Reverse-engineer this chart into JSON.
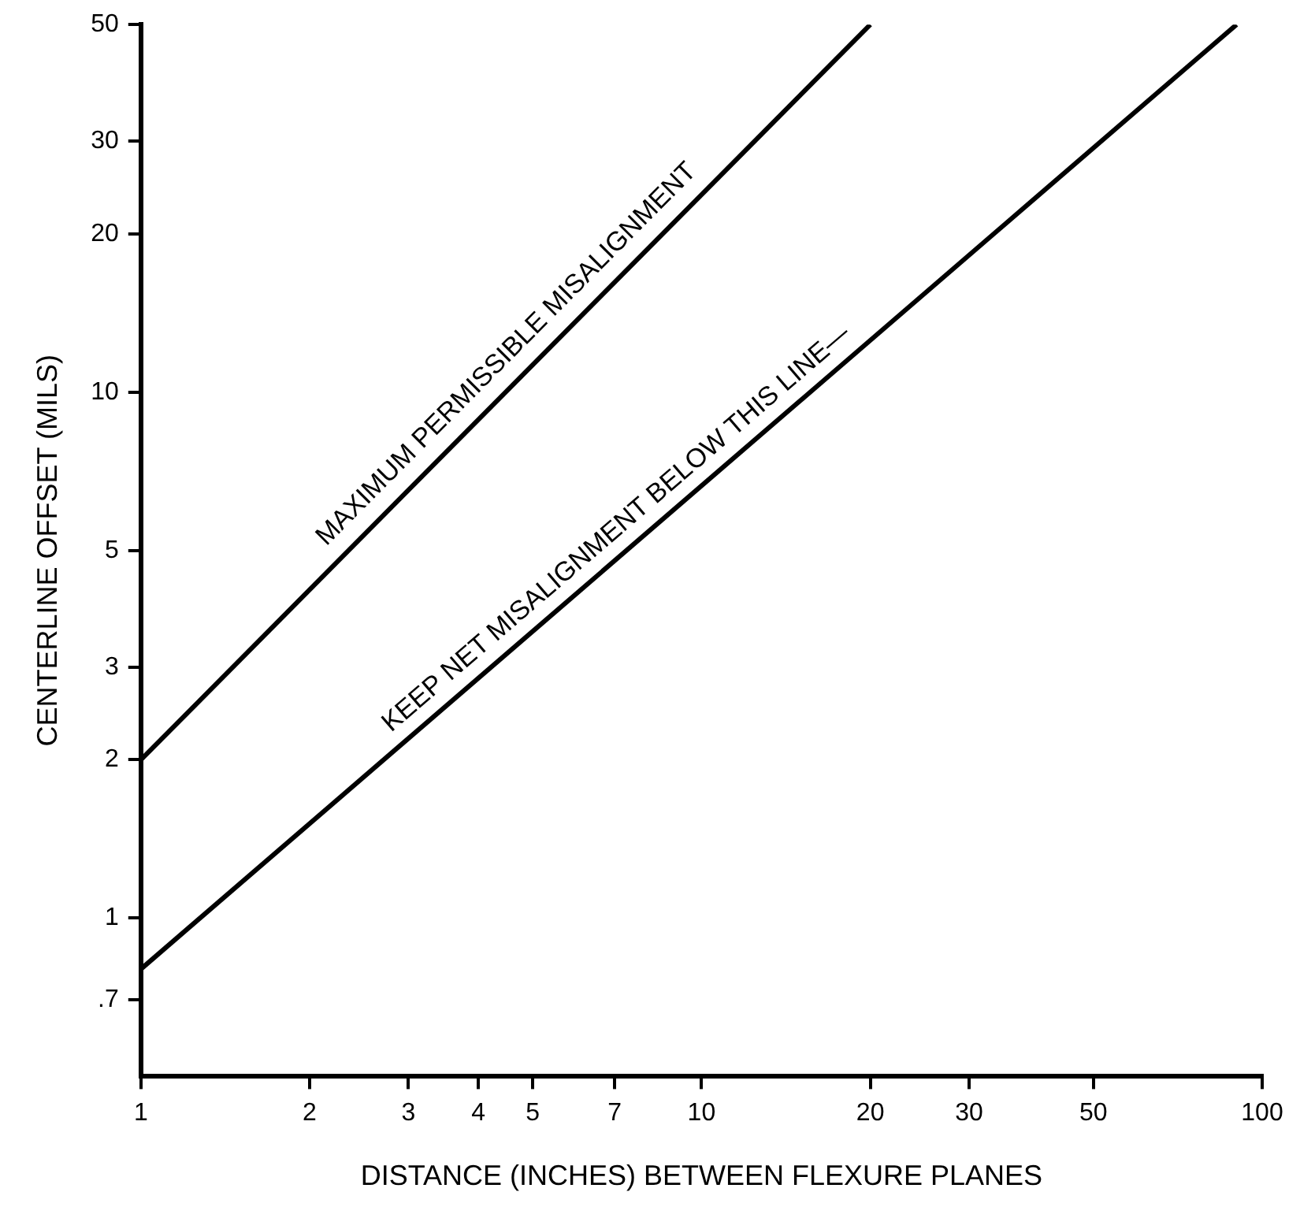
{
  "chart_data": {
    "type": "line",
    "xlabel": "DISTANCE (INCHES) BETWEEN FLEXURE PLANES",
    "ylabel": "CENTERLINE OFFSET (MILS)",
    "log": "xy",
    "xlim": [
      1,
      100
    ],
    "ylim": [
      0.5,
      50
    ],
    "xticks": [
      1,
      2,
      3,
      4,
      5,
      7,
      10,
      20,
      30,
      50,
      100
    ],
    "yticks": [
      {
        "value": 0.7,
        "label": ".7"
      },
      1,
      2,
      3,
      5,
      10,
      20,
      30,
      50
    ],
    "grid": false,
    "legend": false,
    "marker": "none",
    "line_style": "solid",
    "series": [
      {
        "color": "#000000",
        "x": [
          1,
          20
        ],
        "values": [
          2,
          50
        ]
      },
      {
        "color": "#000000",
        "x": [
          1,
          90
        ],
        "values": [
          0.8,
          50
        ]
      }
    ],
    "annotations": [
      {
        "text": "MAXIMUM PERMISSIBLE MISALIGNMENT",
        "x": 4.8,
        "y": 11
      },
      {
        "text": "KEEP NET MISALIGNMENT BELOW THIS LINE—",
        "x": 7.5,
        "y": 5.1
      }
    ]
  }
}
